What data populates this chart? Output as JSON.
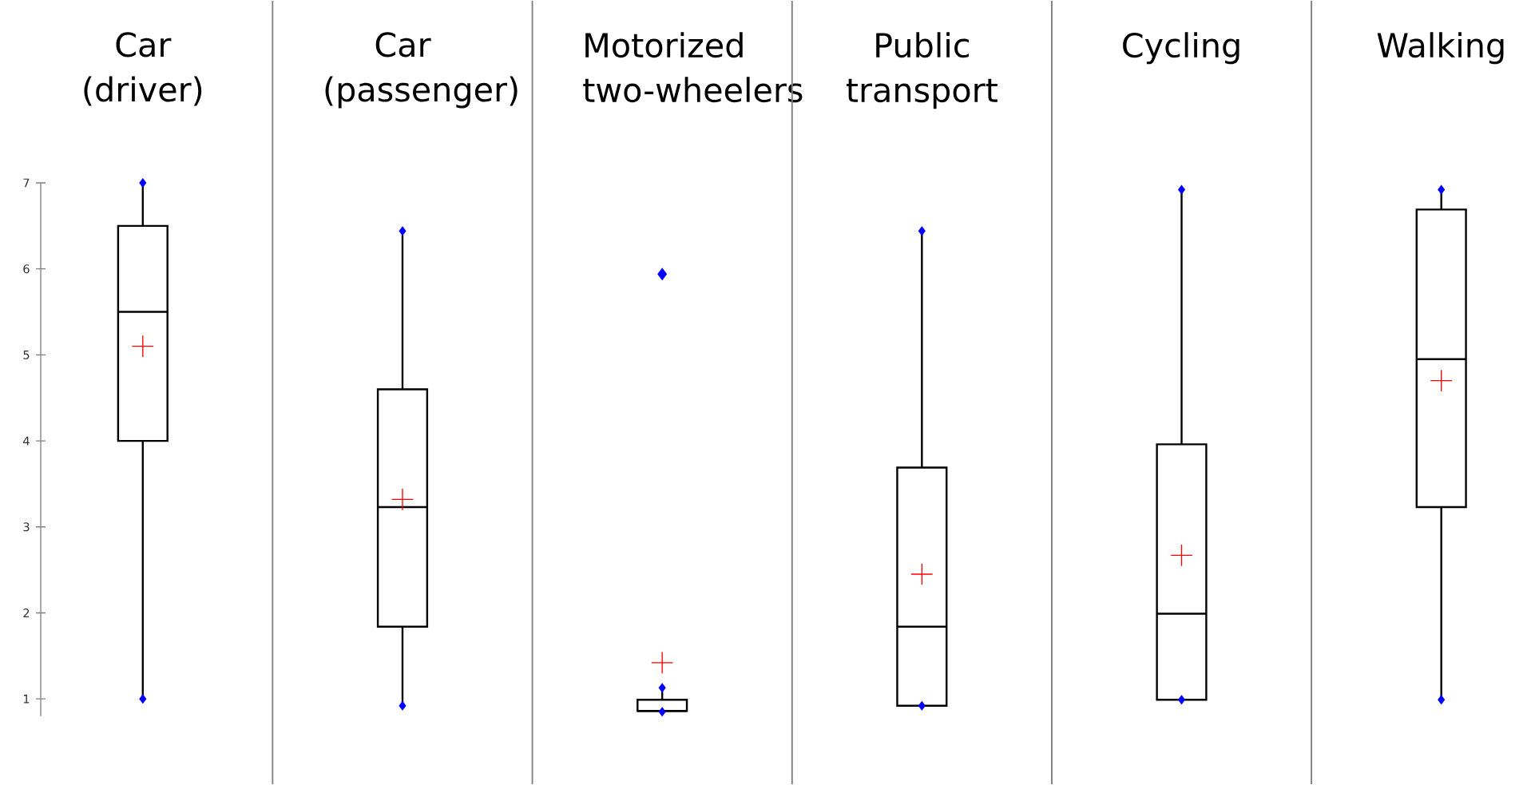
{
  "chart_data": {
    "type": "box",
    "categories": [
      "Car (driver)",
      "Car (passenger)",
      "Motorized two-wheelers",
      "Public transport",
      "Cycling",
      "Walking"
    ],
    "boxes": [
      {
        "low": 1,
        "q1": 4.0,
        "median": 5.5,
        "q3": 6.5,
        "high": 7
      },
      {
        "low": 0.92,
        "q1": 1.84,
        "median": 3.23,
        "q3": 4.6,
        "high": 6.44
      },
      {
        "low": 0.85,
        "q1": 0.86,
        "median": 0.86,
        "q3": 0.99,
        "high": 1.13,
        "outliers": [
          5.94
        ]
      },
      {
        "low": 0.92,
        "q1": 0.92,
        "median": 1.84,
        "q3": 3.69,
        "high": 6.44
      },
      {
        "low": 0.99,
        "q1": 0.99,
        "median": 1.99,
        "q3": 3.96,
        "high": 6.92
      },
      {
        "low": 0.99,
        "q1": 3.23,
        "median": 4.95,
        "q3": 6.69,
        "high": 6.92
      }
    ],
    "series": [
      {
        "type": "scatter",
        "color": "#ff0000",
        "marker": "cross",
        "x": [
          "Car (driver)",
          "Car (passenger)",
          "Motorized two-wheelers",
          "Public transport",
          "Cycling",
          "Walking"
        ],
        "values": [
          5.1,
          3.32,
          1.42,
          2.45,
          2.67,
          4.7
        ]
      },
      {
        "type": "scatter",
        "color": "#0000ff",
        "marker": "diamond",
        "x": [
          "Car (driver)",
          "Car (passenger)",
          "Motorized two-wheelers",
          "Public transport",
          "Cycling",
          "Walking",
          "Car (driver)",
          "Car (passenger)",
          "Motorized two-wheelers",
          "Public transport",
          "Cycling",
          "Walking"
        ],
        "values": [
          1,
          0.92,
          0.85,
          0.92,
          0.99,
          0.99,
          7,
          6.44,
          1.13,
          6.44,
          6.92,
          6.92
        ]
      }
    ],
    "ylim": [
      0.8,
      7
    ],
    "yticks": [
      1,
      2,
      3,
      4,
      5,
      6,
      7
    ],
    "marker": "diamond"
  }
}
